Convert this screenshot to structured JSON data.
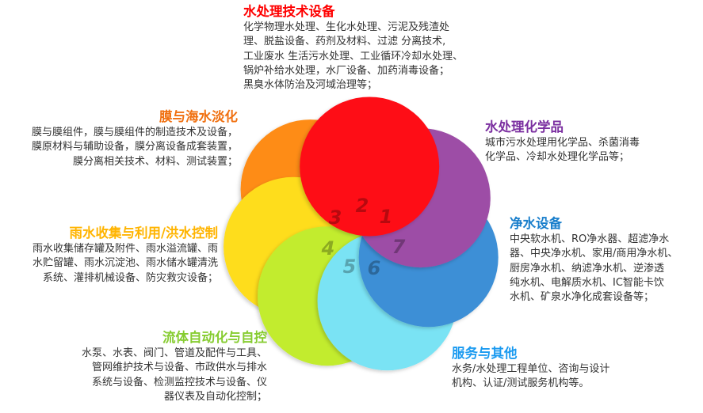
{
  "petals": [
    {
      "number": "1",
      "color": "#fe0e18",
      "title_color": "#ff0000",
      "title": "水处理技术设备",
      "lines": [
        "化学物理水处理、生化水处理、污泥及残渣处",
        "理、脱盐设备、药剂及材料、过滤 分离技术,",
        "工业废水 生活污水处理、工业循环冷却水处理、",
        "锅炉补给水处理，水厂设备、加药消毒设备；",
        "黑臭水体防治及河域治理等；"
      ]
    },
    {
      "number": "2",
      "color": "#fe8c12",
      "title_color": "#f07010",
      "title": "膜与海水淡化",
      "lines": [
        "膜与膜组件，膜与膜组件的制造技术及设备，",
        "膜原材料与辅助设备，膜分离设备成套装置，",
        "膜分离相关技术、材料、测试装置；"
      ]
    },
    {
      "number": "3",
      "color": "#fedd1c",
      "title_color": "#ffb400",
      "title": "雨水收集与利用/洪水控制",
      "lines": [
        "雨水收集储存罐及附件、雨水溢流罐、雨",
        "水贮留罐、雨水沉淀池、雨水储水罐清洗",
        "系统、灌排机械设备、防灾救灾设备；"
      ]
    },
    {
      "number": "4",
      "color": "#c2ec2d",
      "title_color": "#86cc30",
      "title": "流体自动化与自控",
      "lines": [
        "水泵、水表、阀门、管道及配件与工具、",
        "管网维护技术与设备、市政供水与排水",
        "系统与设备、检测监控技术与设备、仪",
        "器仪表及自动化控制；"
      ]
    },
    {
      "number": "5",
      "color": "#7ae3f4",
      "title_color": "#1a9af0",
      "title": "服务与其他",
      "lines": [
        "水务/水处理工程单位、咨询与设计",
        "机构、认证/测试服务机构等。"
      ]
    },
    {
      "number": "6",
      "color": "#3d8fd6",
      "title_color": "#1a7fcc",
      "title": "净水设备",
      "lines": [
        "中央软水机、RO净水器、超滤净水",
        "器、中央净水机、家用/商用净水机、",
        "厨房净水机、纳滤净水机、逆渗透",
        "纯水机、电解质水机、IC智能卡饮",
        "水机、矿泉水净化成套设备等；"
      ]
    },
    {
      "number": "7",
      "color": "#9d4ea6",
      "title_color": "#7b2fa0",
      "title": "水处理化学品",
      "lines": [
        "城市污水处理用化学品、杀菌消毒",
        "化学品、冷却水处理化学品等；"
      ]
    }
  ]
}
